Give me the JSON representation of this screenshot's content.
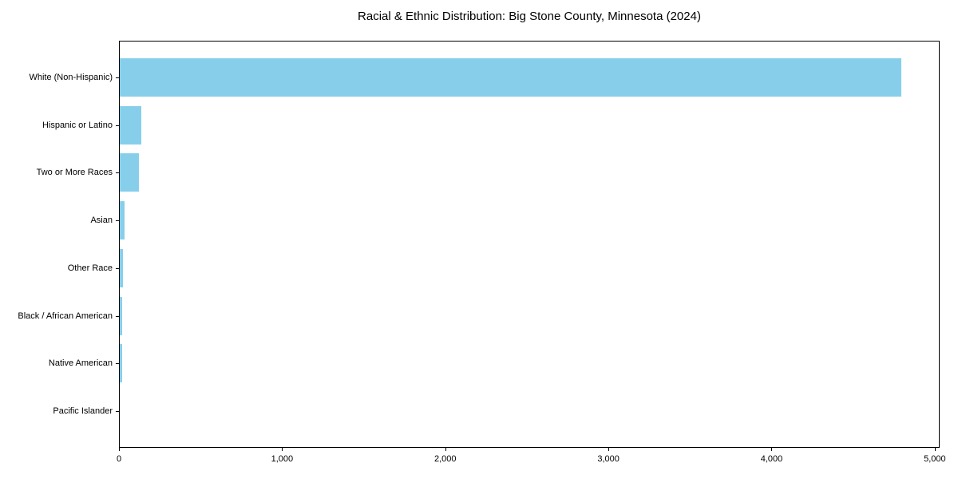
{
  "chart_data": {
    "type": "bar",
    "orientation": "horizontal",
    "title": "Racial & Ethnic Distribution: Big Stone County, Minnesota (2024)",
    "categories": [
      "White (Non-Hispanic)",
      "Hispanic or Latino",
      "Two or More Races",
      "Asian",
      "Other Race",
      "Black / African American",
      "Native American",
      "Pacific Islander"
    ],
    "values": [
      4790,
      130,
      115,
      30,
      20,
      15,
      15,
      0
    ],
    "xlabel": "",
    "ylabel": "",
    "xlim": [
      0,
      5030
    ],
    "xticks": [
      0,
      1000,
      2000,
      3000,
      4000,
      5000
    ],
    "xtick_labels": [
      "0",
      "1,000",
      "2,000",
      "3,000",
      "4,000",
      "5,000"
    ],
    "bar_color": "#87CEEB",
    "frame_color": "#000000",
    "background_color": "#ffffff",
    "grid": false,
    "legend": null
  }
}
